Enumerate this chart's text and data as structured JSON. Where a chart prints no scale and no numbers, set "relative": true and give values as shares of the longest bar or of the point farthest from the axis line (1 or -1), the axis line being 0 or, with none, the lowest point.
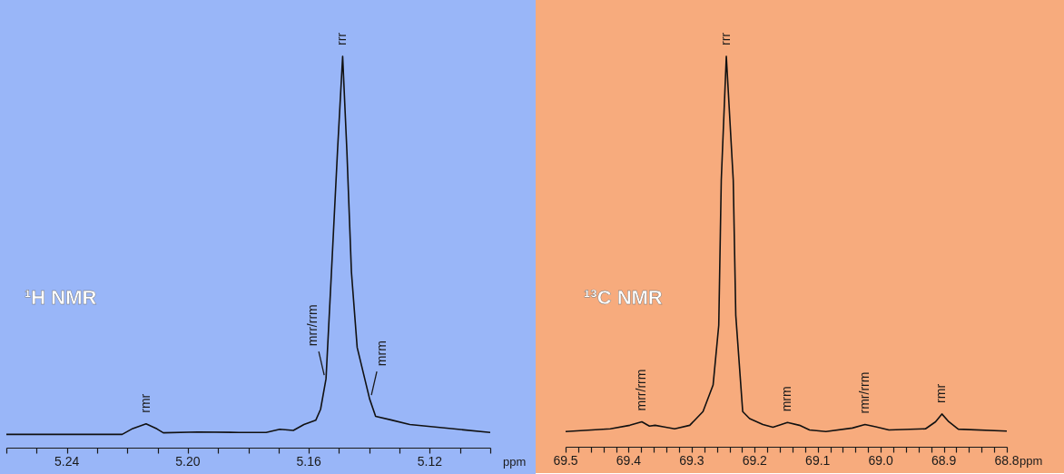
{
  "chart_data": [
    {
      "type": "line",
      "title": "¹H NMR",
      "xlabel": "ppm",
      "relative": true,
      "x": [
        5.26,
        5.2217,
        5.2182,
        5.2138,
        5.2102,
        5.2081,
        5.1967,
        5.1831,
        5.1741,
        5.1696,
        5.1651,
        5.1616,
        5.1577,
        5.1561,
        5.1543,
        5.1525,
        5.1505,
        5.1488,
        5.1474,
        5.1459,
        5.144,
        5.1399,
        5.1379,
        5.1329,
        5.1266,
        5.1
      ],
      "series": [
        {
          "color": "#111111",
          "values": [
            0.034,
            0.034,
            0.049,
            0.061,
            0.048,
            0.038,
            0.04,
            0.039,
            0.039,
            0.047,
            0.044,
            0.059,
            0.07,
            0.098,
            0.176,
            0.449,
            0.758,
            1.0,
            0.758,
            0.449,
            0.256,
            0.125,
            0.08,
            0.071,
            0.059,
            0.039
          ]
        }
      ],
      "xlim": [
        5.26,
        5.1
      ],
      "xticks": [
        {
          "value": 5.26,
          "label": null
        },
        {
          "value": 5.25,
          "label": null
        },
        5.24,
        {
          "value": 5.23,
          "label": null
        },
        {
          "value": 5.22,
          "label": null
        },
        {
          "value": 5.21,
          "label": null
        },
        {
          "value": 5.2,
          "label": "5.20"
        },
        {
          "value": 5.19,
          "label": null
        },
        {
          "value": 5.18,
          "label": null
        },
        {
          "value": 5.17,
          "label": null
        },
        5.16,
        {
          "value": 5.15,
          "label": null
        },
        {
          "value": 5.14,
          "label": null
        },
        {
          "value": 5.13,
          "label": null
        },
        5.12,
        {
          "value": 5.11,
          "label": null
        },
        {
          "value": 5.1,
          "label": null
        }
      ],
      "annotations": [
        {
          "text": "rmr",
          "x": 5.2138,
          "y": 0.061
        },
        {
          "text": "mrr/rrm",
          "x": 5.1543,
          "y": 0.176
        },
        {
          "text": "rrr",
          "x": 5.1488,
          "y": 1.0
        },
        {
          "text": "mrm",
          "x": 5.1399,
          "y": 0.125
        }
      ]
    },
    {
      "type": "line",
      "title": "¹³C NMR",
      "xlabel": "ppm",
      "relative": true,
      "x": [
        69.5,
        69.429,
        69.398,
        69.379,
        69.367,
        69.358,
        69.345,
        69.327,
        69.303,
        69.282,
        69.266,
        69.257,
        69.253,
        69.245,
        69.234,
        69.23,
        69.219,
        69.208,
        69.187,
        69.171,
        69.148,
        69.129,
        69.113,
        69.087,
        69.045,
        69.025,
        69.008,
        68.987,
        68.929,
        68.913,
        68.903,
        68.892,
        68.877,
        68.8
      ],
      "series": [
        {
          "color": "#111111",
          "values": [
            0.039,
            0.046,
            0.055,
            0.064,
            0.053,
            0.055,
            0.051,
            0.046,
            0.055,
            0.09,
            0.158,
            0.311,
            0.683,
            1.0,
            0.683,
            0.337,
            0.09,
            0.072,
            0.057,
            0.05,
            0.062,
            0.055,
            0.043,
            0.039,
            0.048,
            0.057,
            0.051,
            0.043,
            0.046,
            0.064,
            0.084,
            0.064,
            0.045,
            0.04
          ]
        }
      ],
      "xlim": [
        69.5,
        68.8
      ],
      "xticks": [
        69.5,
        {
          "value": 69.48,
          "label": null
        },
        {
          "value": 69.46,
          "label": null
        },
        {
          "value": 69.44,
          "label": null
        },
        {
          "value": 69.42,
          "label": null
        },
        69.4,
        {
          "value": 69.38,
          "label": null
        },
        {
          "value": 69.36,
          "label": null
        },
        {
          "value": 69.34,
          "label": null
        },
        {
          "value": 69.32,
          "label": null
        },
        69.3,
        {
          "value": 69.28,
          "label": null
        },
        {
          "value": 69.26,
          "label": null
        },
        {
          "value": 69.24,
          "label": null
        },
        {
          "value": 69.22,
          "label": null
        },
        69.2,
        {
          "value": 69.18,
          "label": null
        },
        {
          "value": 69.16,
          "label": null
        },
        {
          "value": 69.14,
          "label": null
        },
        {
          "value": 69.12,
          "label": null
        },
        69.1,
        {
          "value": 69.08,
          "label": null
        },
        {
          "value": 69.06,
          "label": null
        },
        {
          "value": 69.04,
          "label": null
        },
        {
          "value": 69.02,
          "label": null
        },
        {
          "value": 69.0,
          "label": "69.0"
        },
        {
          "value": 68.98,
          "label": null
        },
        {
          "value": 68.96,
          "label": null
        },
        {
          "value": 68.94,
          "label": null
        },
        {
          "value": 68.92,
          "label": null
        },
        68.9,
        {
          "value": 68.88,
          "label": null
        },
        {
          "value": 68.86,
          "label": null
        },
        {
          "value": 68.84,
          "label": null
        },
        {
          "value": 68.82,
          "label": null
        },
        68.8
      ],
      "annotations": [
        {
          "text": "mrr/rrm",
          "x": 69.379,
          "y": 0.064
        },
        {
          "text": "rrr",
          "x": 69.245,
          "y": 1.0
        },
        {
          "text": "mrm",
          "x": 69.148,
          "y": 0.062
        },
        {
          "text": "rmr/rrm",
          "x": 69.025,
          "y": 0.057
        },
        {
          "text": "rmr",
          "x": 68.903,
          "y": 0.084
        }
      ]
    }
  ]
}
